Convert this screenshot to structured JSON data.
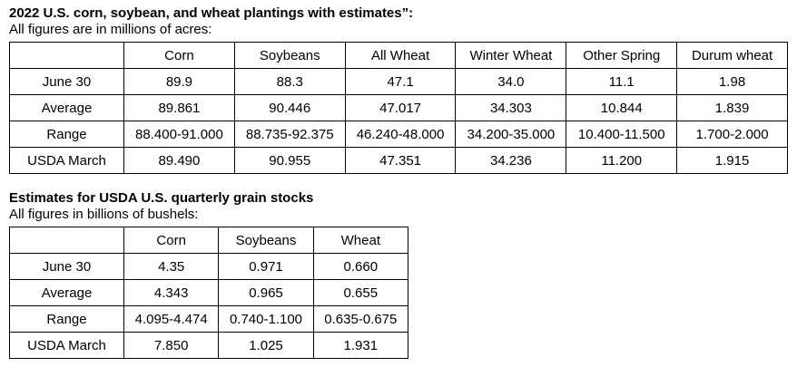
{
  "colors": {
    "text": "#000000",
    "border": "#000000",
    "background": "#ffffff"
  },
  "section1": {
    "title": "2022 U.S. corn, soybean, and wheat plantings with estimates”:",
    "subtitle": "All figures are in millions of acres:",
    "table": {
      "columns": [
        "",
        "Corn",
        "Soybeans",
        "All Wheat",
        "Winter Wheat",
        "Other Spring",
        "Durum wheat"
      ],
      "rows": [
        {
          "label": "June 30",
          "values": [
            "89.9",
            "88.3",
            "47.1",
            "34.0",
            "11.1",
            "1.98"
          ]
        },
        {
          "label": "Average",
          "values": [
            "89.861",
            "90.446",
            "47.017",
            "34.303",
            "10.844",
            "1.839"
          ]
        },
        {
          "label": "Range",
          "values": [
            "88.400-91.000",
            "88.735-92.375",
            "46.240-48.000",
            "34.200-35.000",
            "10.400-11.500",
            "1.700-2.000"
          ]
        },
        {
          "label": "USDA March",
          "values": [
            "89.490",
            "90.955",
            "47.351",
            "34.236",
            "11.200",
            "1.915"
          ]
        }
      ]
    }
  },
  "section2": {
    "title": "Estimates for USDA U.S. quarterly grain stocks",
    "subtitle": "All figures in billions of bushels:",
    "table": {
      "columns": [
        "",
        "Corn",
        "Soybeans",
        "Wheat"
      ],
      "rows": [
        {
          "label": "June 30",
          "values": [
            "4.35",
            "0.971",
            "0.660"
          ]
        },
        {
          "label": "Average",
          "values": [
            "4.343",
            "0.965",
            "0.655"
          ]
        },
        {
          "label": "Range",
          "values": [
            "4.095-4.474",
            "0.740-1.100",
            "0.635-0.675"
          ]
        },
        {
          "label": "USDA March",
          "values": [
            "7.850",
            "1.025",
            "1.931"
          ]
        }
      ]
    }
  }
}
